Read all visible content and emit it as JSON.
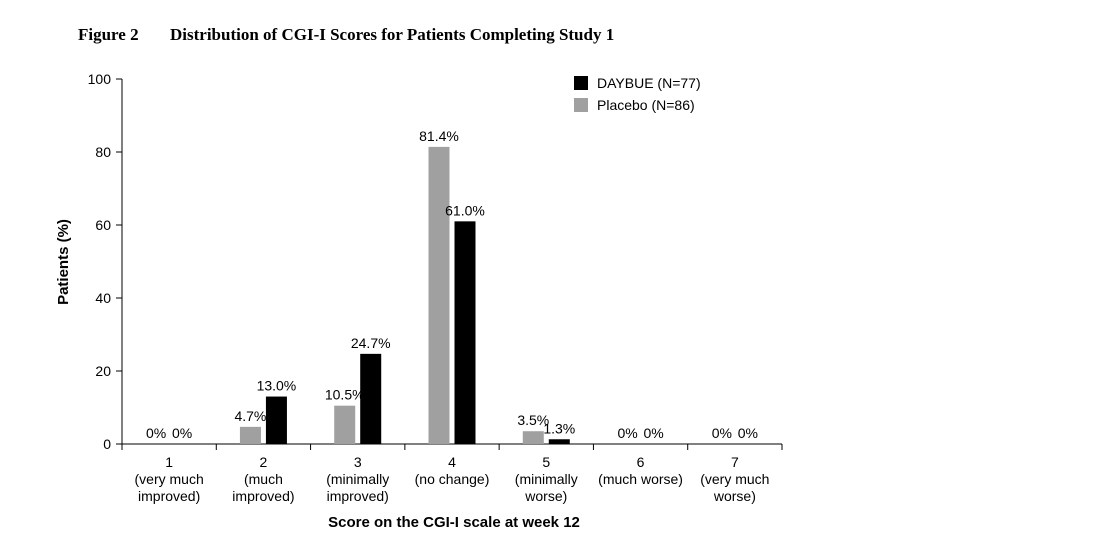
{
  "figure": {
    "label": "Figure 2",
    "title": "Distribution of CGI-I Scores for Patients Completing Study 1"
  },
  "chart_data": {
    "type": "bar",
    "title": "Distribution of CGI-I Scores for Patients Completing Study 1",
    "xlabel": "Score on the CGI-I scale at week 12",
    "ylabel": "Patients (%)",
    "ylim": [
      0,
      100
    ],
    "yticks": [
      0,
      20,
      40,
      60,
      80,
      100
    ],
    "grid": false,
    "legend_position": "top-right",
    "categories": [
      [
        "1",
        "(very much",
        "improved)"
      ],
      [
        "2",
        "(much",
        "improved)"
      ],
      [
        "3",
        "(minimally",
        "improved)"
      ],
      [
        "4",
        "(no change)"
      ],
      [
        "5",
        "(minimally",
        "worse)"
      ],
      [
        "6",
        "(much worse)"
      ],
      [
        "7",
        "(very much",
        "worse)"
      ]
    ],
    "series": [
      {
        "name": "Placebo (N=86)",
        "color": "#a0a0a0",
        "values": [
          0,
          4.7,
          10.5,
          81.4,
          3.5,
          0,
          0
        ],
        "labels": [
          "0%",
          "4.7%",
          "10.5%",
          "81.4%",
          "3.5%",
          "0%",
          "0%"
        ]
      },
      {
        "name": "DAYBUE (N=77)",
        "color": "#000000",
        "values": [
          0,
          13.0,
          24.7,
          61.0,
          1.3,
          0,
          0
        ],
        "labels": [
          "0%",
          "13.0%",
          "24.7%",
          "61.0%",
          "1.3%",
          "0%",
          "0%"
        ]
      }
    ],
    "legend_order": [
      "DAYBUE (N=77)",
      "Placebo (N=86)"
    ]
  }
}
